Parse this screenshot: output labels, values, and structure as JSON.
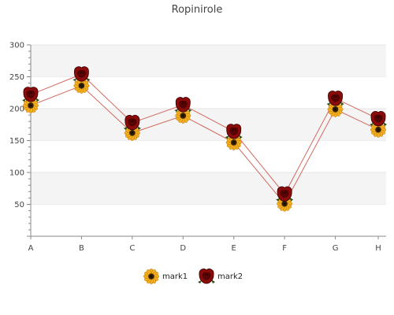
{
  "chart_data": {
    "type": "line",
    "title": "Ropinirole",
    "categories": [
      "A",
      "B",
      "C",
      "D",
      "E",
      "F",
      "G",
      "H"
    ],
    "ylim": [
      0,
      300
    ],
    "yticks": [
      50,
      100,
      150,
      200,
      250,
      300
    ],
    "grid": true,
    "legend": "bottom",
    "series": [
      {
        "name": "mark1",
        "values": [
          205,
          236,
          162,
          189,
          147,
          51,
          199,
          167
        ],
        "color": "#f0a81c",
        "marker": "sunflower-icon"
      },
      {
        "name": "mark2",
        "values": [
          222,
          254,
          178,
          206,
          164,
          66,
          216,
          184
        ],
        "color": "#8b0a0a",
        "marker": "rose-icon"
      }
    ],
    "line_color": "#d06a60",
    "band_color": "#f4f4f4"
  }
}
